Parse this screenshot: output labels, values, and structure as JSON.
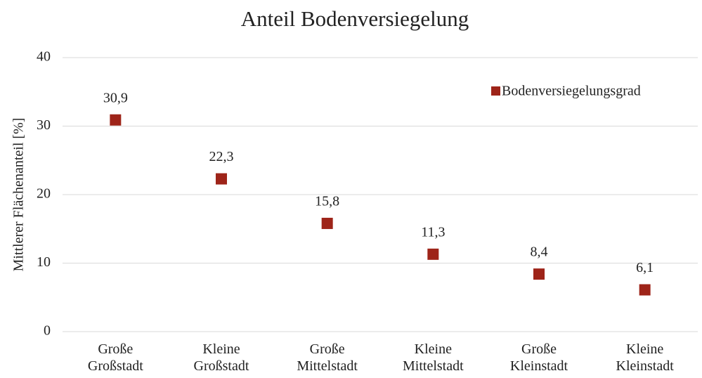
{
  "chart_data": {
    "type": "scatter",
    "title": "Anteil Bodenversiegelung",
    "y_label": "Mittlerer Flächenanteil [%]",
    "categories": [
      "Große Großstadt",
      "Kleine Großstadt",
      "Große Mittelstadt",
      "Kleine Mittelstadt",
      "Große Kleinstadt",
      "Kleine Kleinstadt"
    ],
    "series": [
      {
        "name": "Bodenversiegelungsgrad",
        "color": "#9e2419",
        "values": [
          30.9,
          22.3,
          15.8,
          11.3,
          8.4,
          6.1
        ],
        "value_labels": [
          "30,9",
          "22,3",
          "15,8",
          "11,3",
          "8,4",
          "6,1"
        ]
      }
    ],
    "ylim": [
      0,
      40
    ],
    "yticks": [
      0,
      10,
      20,
      30,
      40
    ],
    "grid": true,
    "legend": "upper right"
  }
}
